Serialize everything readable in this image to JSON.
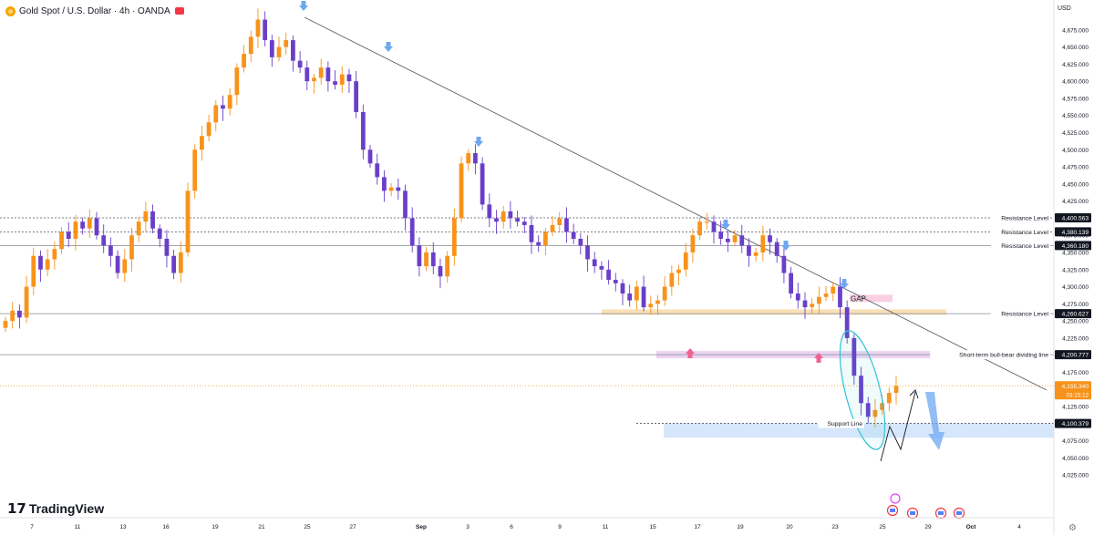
{
  "header": {
    "symbol_title": "Gold Spot / U.S. Dollar · 4h · OANDA",
    "currency": "USD"
  },
  "brand": {
    "logo_text": "TradingView"
  },
  "colors": {
    "bull": "#f7931a",
    "bear": "#6a3fc8",
    "trendline": "#5d606b",
    "resistance_line": "#868993",
    "support_band": "#bbd7f9",
    "resistance_band": "#f5c77e",
    "pivot_band": "#d7a9e3",
    "gap_band": "#f8c3d9",
    "ellipse": "#31c2d3",
    "arrow_down": "#6fa8f0",
    "arrow_up": "#f06292",
    "current_price_bg": "#f7931a"
  },
  "chart_data": {
    "type": "candlestick",
    "title": "Gold Spot / U.S. Dollar · 4h · OANDA",
    "interval": "4h",
    "ylim": [
      4000,
      4700
    ],
    "y_ticks": [
      "4,025.000",
      "4,050.000",
      "4,075.000",
      "4,100.000",
      "4,125.000",
      "4,150.000",
      "4,175.000",
      "4,200.000",
      "4,225.000",
      "4,250.000",
      "4,275.000",
      "4,300.000",
      "4,325.000",
      "4,350.000",
      "4,375.000",
      "4,400.000",
      "4,425.000",
      "4,450.000",
      "4,475.000",
      "4,500.000",
      "4,525.000",
      "4,550.000",
      "4,575.000",
      "4,600.000",
      "4,625.000",
      "4,650.000",
      "4,675.000"
    ],
    "x_ticks": [
      "7",
      "11",
      "13",
      "16",
      "19",
      "21",
      "25",
      "27",
      "Sep",
      "3",
      "6",
      "9",
      "11",
      "15",
      "17",
      "19",
      "20",
      "23",
      "25",
      "29",
      "Oct",
      "4",
      "7"
    ],
    "current_price": "4,155.340",
    "countdown": "03:15:12",
    "price_levels": [
      {
        "label": "Resistance Level",
        "price": "4,400.563",
        "value": 4400.563,
        "style": "dotted"
      },
      {
        "label": "Resistance Level",
        "price": "4,380.139",
        "value": 4380.139,
        "style": "dotted"
      },
      {
        "label": "Resistance Level",
        "price": "4,360.180",
        "value": 4360.18,
        "style": "solid"
      },
      {
        "label": "Resistance Level",
        "price": "4,260.627",
        "value": 4260.627,
        "style": "solid"
      },
      {
        "label": "Short-term bull-bear dividing line",
        "price": "4,200.777",
        "value": 4200.777,
        "style": "solid"
      },
      {
        "label": "Support Line",
        "price": "4,100.379",
        "value": 4100.379,
        "style": "dotted"
      }
    ],
    "annotations": [
      {
        "label": "GAP"
      }
    ],
    "closes": [
      4250,
      4265,
      4255,
      4300,
      4345,
      4325,
      4340,
      4355,
      4380,
      4370,
      4395,
      4385,
      4400,
      4375,
      4360,
      4345,
      4320,
      4340,
      4375,
      4395,
      4410,
      4385,
      4370,
      4345,
      4320,
      4350,
      4440,
      4500,
      4520,
      4540,
      4565,
      4560,
      4580,
      4620,
      4640,
      4665,
      4690,
      4660,
      4635,
      4650,
      4660,
      4630,
      4620,
      4600,
      4605,
      4620,
      4600,
      4595,
      4610,
      4600,
      4555,
      4500,
      4480,
      4460,
      4440,
      4445,
      4440,
      4400,
      4360,
      4330,
      4350,
      4330,
      4315,
      4345,
      4400,
      4480,
      4495,
      4480,
      4420,
      4400,
      4395,
      4410,
      4400,
      4395,
      4390,
      4365,
      4360,
      4380,
      4390,
      4400,
      4380,
      4370,
      4360,
      4340,
      4330,
      4325,
      4310,
      4305,
      4290,
      4280,
      4300,
      4270,
      4275,
      4280,
      4300,
      4320,
      4325,
      4350,
      4375,
      4395,
      4395,
      4380,
      4370,
      4365,
      4375,
      4360,
      4345,
      4350,
      4375,
      4365,
      4345,
      4320,
      4290,
      4280,
      4270,
      4275,
      4285,
      4290,
      4300,
      4270,
      4225,
      4170,
      4130,
      4110,
      4120,
      4130,
      4145,
      4155
    ]
  }
}
